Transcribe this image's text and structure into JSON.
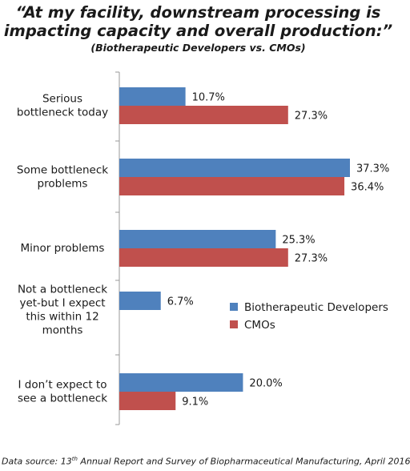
{
  "title_line1": "“At my facility, downstream processing is",
  "title_line2": "impacting capacity and overall production:”",
  "subtitle": "(Biotherapeutic Developers vs. CMOs)",
  "footer": {
    "prefix": "Data source: 13",
    "sup": "th",
    "suffix": " Annual Report and Survey of Biopharmaceutical Manufacturing, April 2016"
  },
  "colors": {
    "developers": "#4F81BD",
    "cmos": "#C0504D",
    "axis": "#999999"
  },
  "chart_data": {
    "type": "bar",
    "orientation": "horizontal",
    "title": "“At my facility, downstream processing is impacting capacity and overall production:”",
    "subtitle": "(Biotherapeutic Developers vs. CMOs)",
    "categories": [
      [
        "Serious",
        "bottleneck today"
      ],
      [
        "Some bottleneck",
        "problems"
      ],
      [
        "Minor problems"
      ],
      [
        "Not a bottleneck",
        "yet-but I expect",
        "this within 12",
        "months"
      ],
      [
        "I don’t expect to",
        "see a bottleneck"
      ]
    ],
    "series": [
      {
        "name": "Biotherapeutic Developers",
        "values": [
          10.7,
          37.3,
          25.3,
          6.7,
          20.0
        ],
        "labels": [
          "10.7%",
          "37.3%",
          "25.3%",
          "6.7%",
          "20.0%"
        ]
      },
      {
        "name": "CMOs",
        "values": [
          27.3,
          36.4,
          27.3,
          null,
          9.1
        ],
        "labels": [
          "27.3%",
          "36.4%",
          "27.3%",
          "",
          "9.1%"
        ]
      }
    ],
    "xlim": [
      0,
      40
    ],
    "grid": false,
    "legend_position": "right-middle"
  }
}
